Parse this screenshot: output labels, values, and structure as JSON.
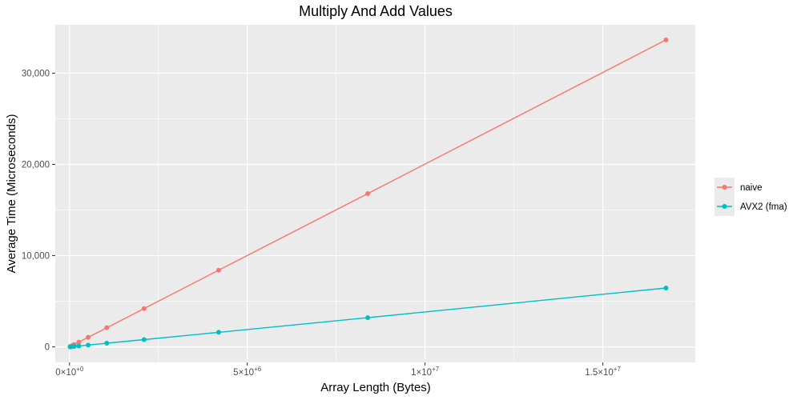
{
  "chart_data": {
    "type": "line",
    "title": "Multiply And Add Values",
    "xlabel": "Array Length (Bytes)",
    "ylabel": "Average Time (Microseconds)",
    "xlim": [
      -400000,
      17600000
    ],
    "ylim": [
      -1700,
      35300
    ],
    "x_ticks": [
      {
        "value": 0,
        "mant": "0",
        "exp": "+0"
      },
      {
        "value": 5000000,
        "mant": "5",
        "exp": "+6"
      },
      {
        "value": 10000000,
        "mant": "1",
        "exp": "+7"
      },
      {
        "value": 15000000,
        "mant": "1.5",
        "exp": "+7"
      }
    ],
    "x_minor_ticks": [
      2500000,
      7500000,
      12500000
    ],
    "y_ticks": [
      {
        "value": 0,
        "label": "0"
      },
      {
        "value": 10000,
        "label": "10,000"
      },
      {
        "value": 20000,
        "label": "20,000"
      },
      {
        "value": 30000,
        "label": "30,000"
      }
    ],
    "y_minor_ticks": [
      5000,
      15000,
      25000
    ],
    "grid": true,
    "legend_position": "right",
    "series": [
      {
        "name": "naive",
        "color": "#F8766D",
        "x": [
          16384,
          32768,
          65536,
          131072,
          262144,
          524288,
          1048576,
          2097152,
          4194304,
          8388608,
          16777216
        ],
        "y": [
          33,
          66,
          131,
          263,
          525,
          1050,
          2100,
          4200,
          8400,
          16800,
          33650
        ]
      },
      {
        "name": "AVX2 (fma)",
        "color": "#00BFC4",
        "x": [
          16384,
          32768,
          65536,
          131072,
          262144,
          524288,
          1048576,
          2097152,
          4194304,
          8388608,
          16777216
        ],
        "y": [
          6,
          12,
          25,
          50,
          100,
          200,
          400,
          800,
          1600,
          3200,
          6450
        ]
      }
    ]
  }
}
